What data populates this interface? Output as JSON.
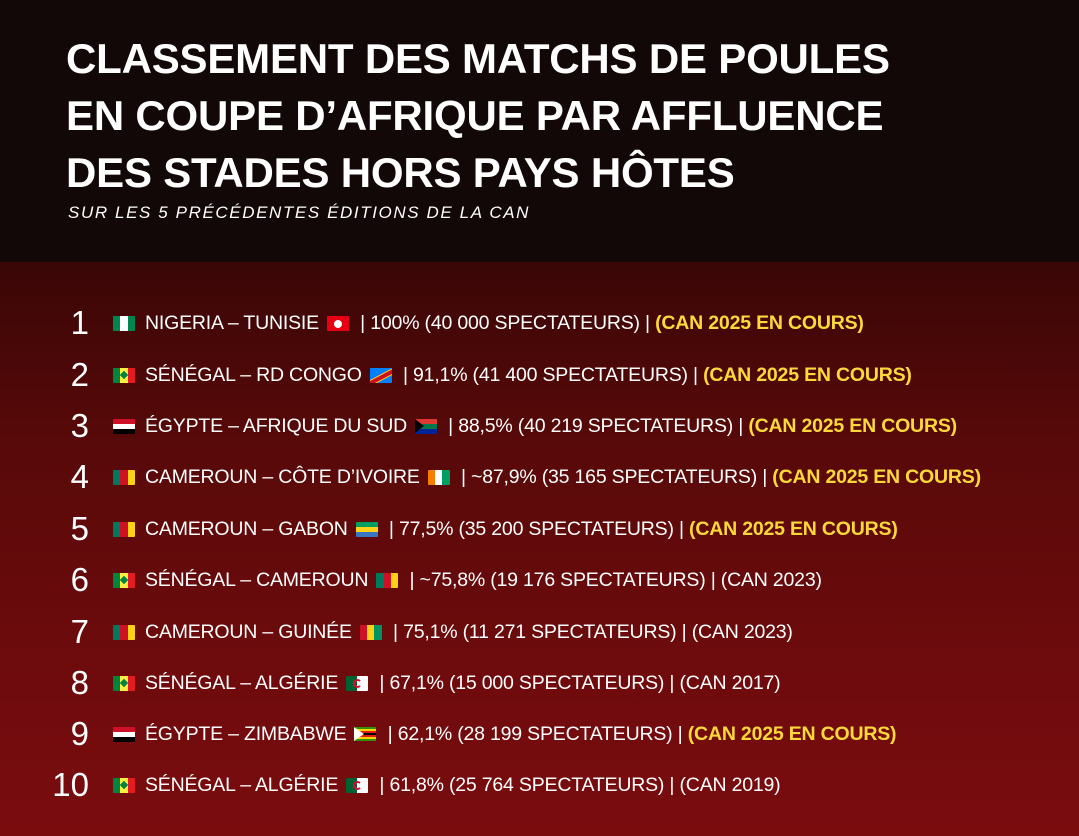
{
  "title_lines": [
    "CLASSEMENT DES MATCHS DE POULES",
    "EN COUPE D’AFRIQUE PAR AFFLUENCE",
    "DES STADES HORS PAYS HÔTES"
  ],
  "subtitle": "SUR LES 5 PRÉCÉDENTES ÉDITIONS DE LA CAN",
  "rows": [
    {
      "rank": "1",
      "match": "NIGERIA – TUNISIE",
      "stats": " | 100% (40 000 SPECTATEURS) | ",
      "edition": "(CAN 2025 EN COURS)",
      "highlight": true,
      "flag1": "nigeria-flag-icon",
      "flag2": "tunisia-flag-icon"
    },
    {
      "rank": "2",
      "match": "SÉNÉGAL – RD CONGO",
      "stats": " | 91,1% (41 400 SPECTATEURS) | ",
      "edition": "(CAN 2025 EN COURS)",
      "highlight": true,
      "flag1": "senegal-flag-icon",
      "flag2": "dr-congo-flag-icon"
    },
    {
      "rank": "3",
      "match": "ÉGYPTE – AFRIQUE DU SUD",
      "stats": " | 88,5% (40 219 SPECTATEURS) | ",
      "edition": "(CAN 2025 EN COURS)",
      "highlight": true,
      "flag1": "egypt-flag-icon",
      "flag2": "south-africa-flag-icon"
    },
    {
      "rank": "4",
      "match": "CAMEROUN – CÔTE D’IVOIRE",
      "stats": " | ~87,9% (35 165 SPECTATEURS) | ",
      "edition": "(CAN 2025 EN COURS)",
      "highlight": true,
      "flag1": "cameroon-flag-icon",
      "flag2": "ivory-coast-flag-icon"
    },
    {
      "rank": "5",
      "match": "CAMEROUN – GABON",
      "stats": " | 77,5% (35 200 SPECTATEURS) | ",
      "edition": "(CAN 2025 EN COURS)",
      "highlight": true,
      "flag1": "cameroon-flag-icon",
      "flag2": "gabon-flag-icon"
    },
    {
      "rank": "6",
      "match": "SÉNÉGAL – CAMEROUN",
      "stats": " | ~75,8% (19 176 SPECTATEURS) | ",
      "edition": "(CAN 2023)",
      "highlight": false,
      "flag1": "senegal-flag-icon",
      "flag2": "cameroon-flag-icon"
    },
    {
      "rank": "7",
      "match": "CAMEROUN – GUINÉE",
      "stats": " | 75,1% (11 271 SPECTATEURS) | ",
      "edition": "(CAN 2023)",
      "highlight": false,
      "flag1": "cameroon-flag-icon",
      "flag2": "guinea-flag-icon"
    },
    {
      "rank": "8",
      "match": "SÉNÉGAL – ALGÉRIE",
      "stats": " | 67,1% (15 000 SPECTATEURS) | ",
      "edition": "(CAN 2017)",
      "highlight": false,
      "flag1": "senegal-flag-icon",
      "flag2": "algeria-flag-icon"
    },
    {
      "rank": "9",
      "match": "ÉGYPTE – ZIMBABWE",
      "stats": " | 62,1% (28 199 SPECTATEURS) | ",
      "edition": "(CAN 2025 EN COURS)",
      "highlight": true,
      "flag1": "egypt-flag-icon",
      "flag2": "zimbabwe-flag-icon"
    },
    {
      "rank": "10",
      "match": "SÉNÉGAL – ALGÉRIE",
      "stats": " | 61,8% (25 764 SPECTATEURS) | ",
      "edition": "(CAN 2019)",
      "highlight": false,
      "flag1": "senegal-flag-icon",
      "flag2": "algeria-flag-icon"
    }
  ],
  "colors": {
    "header_bg": "#130808",
    "body_bg": "#6e0b0d",
    "text": "#ffffff",
    "highlight": "#ffd83a"
  }
}
